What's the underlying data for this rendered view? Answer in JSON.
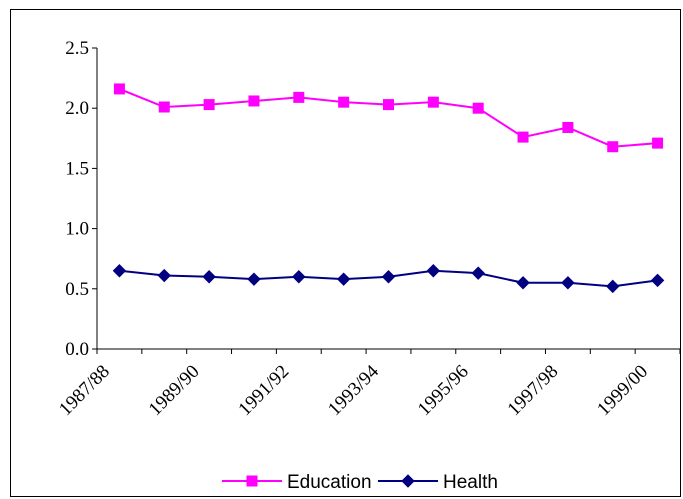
{
  "chart_data": {
    "type": "line",
    "title": "",
    "xlabel": "",
    "ylabel": "",
    "x_tick_labels": [
      "1987/88",
      "1989/90",
      "1991/92",
      "1993/94",
      "1995/96",
      "1997/98",
      "1999/00"
    ],
    "y_tick_labels": [
      "0.0",
      "0.5",
      "1.0",
      "1.5",
      "2.0",
      "2.5"
    ],
    "ylim": [
      0,
      2.5
    ],
    "n_points": 13,
    "grid": false,
    "legend_position": "bottom",
    "series": [
      {
        "name": "Education",
        "color": "#FF00FF",
        "marker": "square",
        "values": [
          2.16,
          2.01,
          2.03,
          2.06,
          2.09,
          2.05,
          2.03,
          2.05,
          2.0,
          1.76,
          1.84,
          1.68,
          1.71
        ]
      },
      {
        "name": "Health",
        "color": "#000080",
        "marker": "diamond",
        "values": [
          0.65,
          0.61,
          0.6,
          0.58,
          0.6,
          0.58,
          0.6,
          0.65,
          0.63,
          0.55,
          0.55,
          0.52,
          0.57
        ]
      }
    ]
  }
}
